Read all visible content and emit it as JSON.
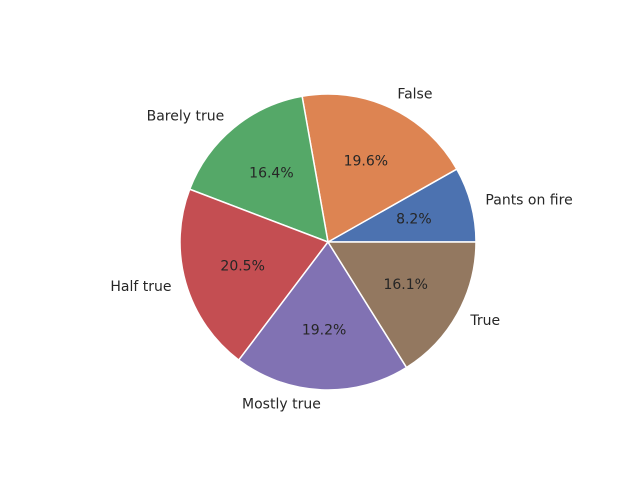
{
  "chart_data": {
    "type": "pie",
    "title": "",
    "start_angle_deg": 0,
    "direction": "counterclockwise",
    "slices": [
      {
        "label": "Pants on fire",
        "value": 8.2,
        "pct_label": "8.2%",
        "color": "#4c72b0"
      },
      {
        "label": "False",
        "value": 19.6,
        "pct_label": "19.6%",
        "color": "#dd8452"
      },
      {
        "label": "Barely true",
        "value": 16.4,
        "pct_label": "16.4%",
        "color": "#55a868"
      },
      {
        "label": "Half true",
        "value": 20.5,
        "pct_label": "20.5%",
        "color": "#c44e52"
      },
      {
        "label": "Mostly true",
        "value": 19.2,
        "pct_label": "19.2%",
        "color": "#8172b3"
      },
      {
        "label": "True",
        "value": 16.1,
        "pct_label": "16.1%",
        "color": "#937860"
      }
    ],
    "edge_color": "#ffffff"
  }
}
